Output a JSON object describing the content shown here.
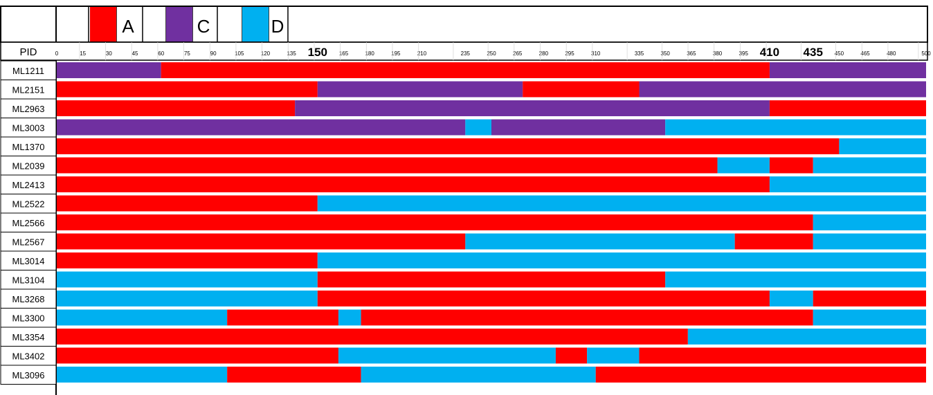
{
  "legend": [
    {
      "label": "A",
      "color": "#ff0000"
    },
    {
      "label": "C",
      "color": "#7030a0"
    },
    {
      "label": "D",
      "color": "#00b0f0"
    }
  ],
  "chart_data": {
    "type": "bar",
    "subtype": "segmented-genome-map",
    "row_header": "PID",
    "x_ticks": [
      0,
      15,
      30,
      45,
      60,
      75,
      90,
      105,
      120,
      135,
      150,
      165,
      180,
      195,
      210,
      235,
      250,
      265,
      280,
      295,
      310,
      335,
      350,
      365,
      380,
      395,
      410,
      435,
      450,
      465,
      480,
      500
    ],
    "emphasized_ticks": [
      150,
      410,
      435
    ],
    "rows": [
      {
        "pid": "ML1211",
        "segments": [
          {
            "end": 60,
            "type": "C"
          },
          {
            "end": 410,
            "type": "A"
          },
          {
            "end": 500,
            "type": "C"
          }
        ]
      },
      {
        "pid": "ML2151",
        "segments": [
          {
            "end": 150,
            "type": "A"
          },
          {
            "end": 268,
            "type": "C"
          },
          {
            "end": 335,
            "type": "A"
          },
          {
            "end": 500,
            "type": "C"
          }
        ]
      },
      {
        "pid": "ML2963",
        "segments": [
          {
            "end": 137,
            "type": "A"
          },
          {
            "end": 410,
            "type": "C"
          },
          {
            "end": 500,
            "type": "A"
          }
        ]
      },
      {
        "pid": "ML3003",
        "segments": [
          {
            "end": 235,
            "type": "C"
          },
          {
            "end": 250,
            "type": "D"
          },
          {
            "end": 350,
            "type": "C"
          },
          {
            "end": 500,
            "type": "D"
          }
        ]
      },
      {
        "pid": "ML1370",
        "segments": [
          {
            "end": 450,
            "type": "A"
          },
          {
            "end": 500,
            "type": "D"
          }
        ]
      },
      {
        "pid": "ML2039",
        "segments": [
          {
            "end": 380,
            "type": "A"
          },
          {
            "end": 410,
            "type": "D"
          },
          {
            "end": 435,
            "type": "A"
          },
          {
            "end": 500,
            "type": "D"
          }
        ]
      },
      {
        "pid": "ML2413",
        "segments": [
          {
            "end": 410,
            "type": "A"
          },
          {
            "end": 500,
            "type": "D"
          }
        ]
      },
      {
        "pid": "ML2522",
        "segments": [
          {
            "end": 150,
            "type": "A"
          },
          {
            "end": 500,
            "type": "D"
          }
        ]
      },
      {
        "pid": "ML2566",
        "segments": [
          {
            "end": 435,
            "type": "A"
          },
          {
            "end": 500,
            "type": "D"
          }
        ]
      },
      {
        "pid": "ML2567",
        "segments": [
          {
            "end": 235,
            "type": "A"
          },
          {
            "end": 390,
            "type": "D"
          },
          {
            "end": 435,
            "type": "A"
          },
          {
            "end": 500,
            "type": "D"
          }
        ]
      },
      {
        "pid": "ML3014",
        "segments": [
          {
            "end": 150,
            "type": "A"
          },
          {
            "end": 500,
            "type": "D"
          }
        ]
      },
      {
        "pid": "ML3104",
        "segments": [
          {
            "end": 150,
            "type": "D"
          },
          {
            "end": 350,
            "type": "A"
          },
          {
            "end": 500,
            "type": "D"
          }
        ]
      },
      {
        "pid": "ML3268",
        "segments": [
          {
            "end": 150,
            "type": "D"
          },
          {
            "end": 410,
            "type": "A"
          },
          {
            "end": 435,
            "type": "D"
          },
          {
            "end": 500,
            "type": "A"
          }
        ]
      },
      {
        "pid": "ML3300",
        "segments": [
          {
            "end": 98,
            "type": "D"
          },
          {
            "end": 162,
            "type": "A"
          },
          {
            "end": 175,
            "type": "D"
          },
          {
            "end": 435,
            "type": "A"
          },
          {
            "end": 500,
            "type": "D"
          }
        ]
      },
      {
        "pid": "ML3354",
        "segments": [
          {
            "end": 363,
            "type": "A"
          },
          {
            "end": 500,
            "type": "D"
          }
        ]
      },
      {
        "pid": "ML3402",
        "segments": [
          {
            "end": 162,
            "type": "A"
          },
          {
            "end": 287,
            "type": "D"
          },
          {
            "end": 305,
            "type": "A"
          },
          {
            "end": 335,
            "type": "D"
          },
          {
            "end": 500,
            "type": "A"
          }
        ]
      },
      {
        "pid": "ML3096",
        "segments": [
          {
            "end": 98,
            "type": "D"
          },
          {
            "end": 175,
            "type": "A"
          },
          {
            "end": 310,
            "type": "D"
          },
          {
            "end": 500,
            "type": "A"
          }
        ]
      }
    ]
  }
}
